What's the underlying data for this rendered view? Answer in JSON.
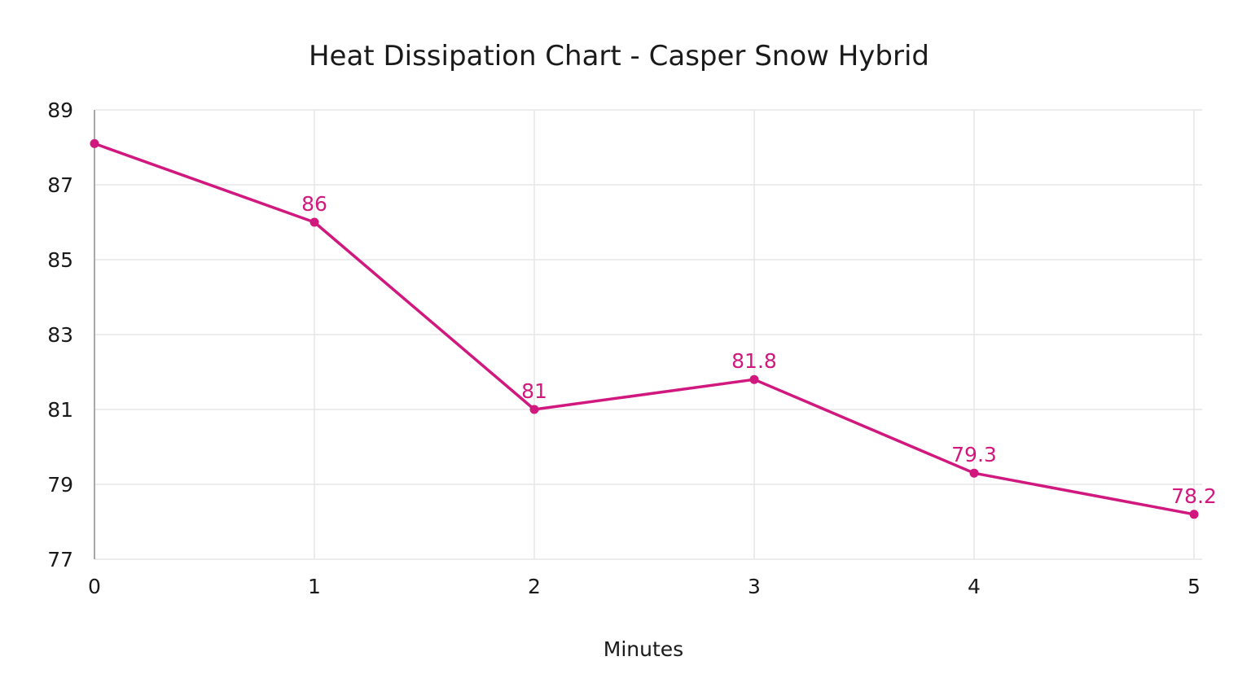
{
  "chart_data": {
    "type": "line",
    "title": "Heat Dissipation Chart - Casper Snow Hybrid",
    "xlabel": "Minutes",
    "ylabel": "",
    "x": [
      0,
      1,
      2,
      3,
      4,
      5
    ],
    "x_tick_labels": [
      "0",
      "1",
      "2",
      "3",
      "4",
      "5"
    ],
    "y_tick_labels": [
      "77",
      "79",
      "81",
      "83",
      "85",
      "87",
      "89"
    ],
    "y_ticks": [
      77,
      79,
      81,
      83,
      85,
      87,
      89
    ],
    "xlim": [
      0,
      5
    ],
    "ylim": [
      77,
      89
    ],
    "grid": true,
    "legend": "none",
    "series": [
      {
        "values": [
          88.1,
          86,
          81,
          81.8,
          79.3,
          78.2
        ],
        "data_labels": [
          "",
          "86",
          "81",
          "81.8",
          "79.3",
          "78.2"
        ],
        "color": "#d0187f"
      }
    ]
  }
}
